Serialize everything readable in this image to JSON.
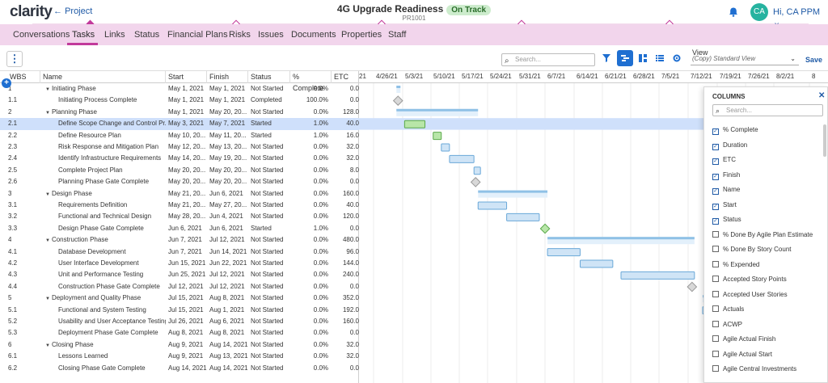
{
  "app": {
    "logo": "clarity",
    "back_label": "Project"
  },
  "project": {
    "title": "4G Upgrade Readiness",
    "status": "On Track",
    "code": "PR1001"
  },
  "user": {
    "initials": "CA",
    "greeting": "Hi, CA PPM"
  },
  "tabs": [
    "Conversations",
    "Tasks",
    "Links",
    "Status",
    "Financial Plans",
    "Risks",
    "Issues",
    "Documents",
    "Properties",
    "Staff"
  ],
  "active_tab": "Tasks",
  "toolbar": {
    "search_placeholder": "Search...",
    "view_label": "View",
    "view_value": "(Copy) Standard View",
    "save_label": "Save"
  },
  "columns": {
    "wbs": "WBS",
    "name": "Name",
    "start": "Start",
    "finish": "Finish",
    "status": "Status",
    "pct": "% Complete",
    "etc": "ETC"
  },
  "rows": [
    {
      "wbs": "1",
      "name": "Initiating Phase",
      "start": "May 1, 2021",
      "finish": "May 1, 2021",
      "status": "Not Started",
      "pct": "0.0%",
      "etc": "0.0",
      "level": 0,
      "parent": true
    },
    {
      "wbs": "1.1",
      "name": "Initiating Process Complete",
      "start": "May 1, 2021",
      "finish": "May 1, 2021",
      "status": "Completed",
      "pct": "100.0%",
      "etc": "0.0",
      "level": 1
    },
    {
      "wbs": "2",
      "name": "Planning Phase",
      "start": "May 1, 2021",
      "finish": "May 20, 20...",
      "status": "Not Started",
      "pct": "0.0%",
      "etc": "128.0",
      "level": 0,
      "parent": true
    },
    {
      "wbs": "2.1",
      "name": "Define Scope Change and Control Pr...",
      "start": "May 3, 2021",
      "finish": "May 7, 2021",
      "status": "Started",
      "pct": "1.0%",
      "etc": "40.0",
      "level": 1,
      "selected": true
    },
    {
      "wbs": "2.2",
      "name": "Define Resource Plan",
      "start": "May 10, 20...",
      "finish": "May 11, 20...",
      "status": "Started",
      "pct": "1.0%",
      "etc": "16.0",
      "level": 1
    },
    {
      "wbs": "2.3",
      "name": "Risk Response and Mitigation Plan",
      "start": "May 12, 20...",
      "finish": "May 13, 20...",
      "status": "Not Started",
      "pct": "0.0%",
      "etc": "32.0",
      "level": 1
    },
    {
      "wbs": "2.4",
      "name": "Identify Infrastructure Requirements",
      "start": "May 14, 20...",
      "finish": "May 19, 20...",
      "status": "Not Started",
      "pct": "0.0%",
      "etc": "32.0",
      "level": 1
    },
    {
      "wbs": "2.5",
      "name": "Complete Project Plan",
      "start": "May 20, 20...",
      "finish": "May 20, 20...",
      "status": "Not Started",
      "pct": "0.0%",
      "etc": "8.0",
      "level": 1
    },
    {
      "wbs": "2.6",
      "name": "Planning Phase Gate Complete",
      "start": "May 20, 20...",
      "finish": "May 20, 20...",
      "status": "Not Started",
      "pct": "0.0%",
      "etc": "0.0",
      "level": 1
    },
    {
      "wbs": "3",
      "name": "Design Phase",
      "start": "May 21, 20...",
      "finish": "Jun 6, 2021",
      "status": "Not Started",
      "pct": "0.0%",
      "etc": "160.0",
      "level": 0,
      "parent": true
    },
    {
      "wbs": "3.1",
      "name": "Requirements Definition",
      "start": "May 21, 20...",
      "finish": "May 27, 20...",
      "status": "Not Started",
      "pct": "0.0%",
      "etc": "40.0",
      "level": 1
    },
    {
      "wbs": "3.2",
      "name": "Functional and Technical Design",
      "start": "May 28, 20...",
      "finish": "Jun 4, 2021",
      "status": "Not Started",
      "pct": "0.0%",
      "etc": "120.0",
      "level": 1
    },
    {
      "wbs": "3.3",
      "name": "Design Phase Gate Complete",
      "start": "Jun 6, 2021",
      "finish": "Jun 6, 2021",
      "status": "Started",
      "pct": "1.0%",
      "etc": "0.0",
      "level": 1
    },
    {
      "wbs": "4",
      "name": "Construction Phase",
      "start": "Jun 7, 2021",
      "finish": "Jul 12, 2021",
      "status": "Not Started",
      "pct": "0.0%",
      "etc": "480.0",
      "level": 0,
      "parent": true
    },
    {
      "wbs": "4.1",
      "name": "Database Development",
      "start": "Jun 7, 2021",
      "finish": "Jun 14, 2021",
      "status": "Not Started",
      "pct": "0.0%",
      "etc": "96.0",
      "level": 1
    },
    {
      "wbs": "4.2",
      "name": "User Interface Development",
      "start": "Jun 15, 2021",
      "finish": "Jun 22, 2021",
      "status": "Not Started",
      "pct": "0.0%",
      "etc": "144.0",
      "level": 1
    },
    {
      "wbs": "4.3",
      "name": "Unit and Performance Testing",
      "start": "Jun 25, 2021",
      "finish": "Jul 12, 2021",
      "status": "Not Started",
      "pct": "0.0%",
      "etc": "240.0",
      "level": 1
    },
    {
      "wbs": "4.4",
      "name": "Construction Phase Gate Complete",
      "start": "Jul 12, 2021",
      "finish": "Jul 12, 2021",
      "status": "Not Started",
      "pct": "0.0%",
      "etc": "0.0",
      "level": 1
    },
    {
      "wbs": "5",
      "name": "Deployment and Quality Phase",
      "start": "Jul 15, 2021",
      "finish": "Aug 8, 2021",
      "status": "Not Started",
      "pct": "0.0%",
      "etc": "352.0",
      "level": 0,
      "parent": true
    },
    {
      "wbs": "5.1",
      "name": "Functional and System Testing",
      "start": "Jul 15, 2021",
      "finish": "Aug 1, 2021",
      "status": "Not Started",
      "pct": "0.0%",
      "etc": "192.0",
      "level": 1
    },
    {
      "wbs": "5.2",
      "name": "Usability and User Acceptance Testing",
      "start": "Jul 26, 2021",
      "finish": "Aug 6, 2021",
      "status": "Not Started",
      "pct": "0.0%",
      "etc": "160.0",
      "level": 1
    },
    {
      "wbs": "5.3",
      "name": "Deployment Phase Gate Complete",
      "start": "Aug 8, 2021",
      "finish": "Aug 8, 2021",
      "status": "Not Started",
      "pct": "0.0%",
      "etc": "0.0",
      "level": 1
    },
    {
      "wbs": "6",
      "name": "Closing Phase",
      "start": "Aug 9, 2021",
      "finish": "Aug 14, 2021",
      "status": "Not Started",
      "pct": "0.0%",
      "etc": "32.0",
      "level": 0,
      "parent": true
    },
    {
      "wbs": "6.1",
      "name": "Lessons Learned",
      "start": "Aug 9, 2021",
      "finish": "Aug 13, 2021",
      "status": "Not Started",
      "pct": "0.0%",
      "etc": "32.0",
      "level": 1
    },
    {
      "wbs": "6.2",
      "name": "Closing Phase Gate Complete",
      "start": "Aug 14, 2021",
      "finish": "Aug 14, 2021",
      "status": "Not Started",
      "pct": "0.0%",
      "etc": "0.0",
      "level": 1
    }
  ],
  "gantt": {
    "dates": [
      "21",
      "4/26/21",
      "5/3/21",
      "5/10/21",
      "5/17/21",
      "5/24/21",
      "5/31/21",
      "6/7/21",
      "6/14/21",
      "6/21/21",
      "6/28/21",
      "7/5/21",
      "7/12/21",
      "7/19/21",
      "7/26/21",
      "8/2/21",
      "8"
    ],
    "colors": {
      "phase": "#8fc1e6",
      "task": "#cfe4f6",
      "task_border": "#6aa8d8",
      "started": "#b8e6a8",
      "started_border": "#5aa84a",
      "milestone": "#d8d8d8"
    }
  },
  "columns_panel": {
    "title": "COLUMNS",
    "search_placeholder": "Search...",
    "options": [
      {
        "label": "% Complete",
        "checked": true
      },
      {
        "label": "Duration",
        "checked": true
      },
      {
        "label": "ETC",
        "checked": true
      },
      {
        "label": "Finish",
        "checked": true
      },
      {
        "label": "Name",
        "checked": true
      },
      {
        "label": "Start",
        "checked": true
      },
      {
        "label": "Status",
        "checked": true
      },
      {
        "label": "% Done By Agile Plan Estimate",
        "checked": false
      },
      {
        "label": "% Done By Story Count",
        "checked": false
      },
      {
        "label": "% Expended",
        "checked": false
      },
      {
        "label": "Accepted Story Points",
        "checked": false
      },
      {
        "label": "Accepted User Stories",
        "checked": false
      },
      {
        "label": "Actuals",
        "checked": false
      },
      {
        "label": "ACWP",
        "checked": false
      },
      {
        "label": "Agile Actual Finish",
        "checked": false
      },
      {
        "label": "Agile Actual Start",
        "checked": false
      },
      {
        "label": "Agile Central Investments",
        "checked": false
      }
    ]
  }
}
